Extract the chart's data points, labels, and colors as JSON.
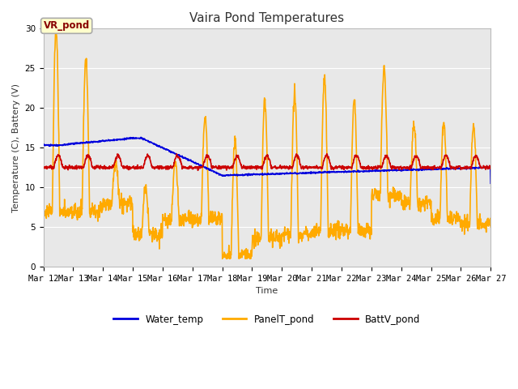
{
  "title": "Vaira Pond Temperatures",
  "ylabel": "Temperature (C), Battery (V)",
  "xlabel": "Time",
  "ylim": [
    0,
    30
  ],
  "background_color": "#ffffff",
  "plot_bg_color": "#e8e8e8",
  "annotation_text": "VR_pond",
  "annotation_bg": "#ffffcc",
  "annotation_border": "#aaaaaa",
  "x_tick_labels": [
    "Mar 12",
    "Mar 13",
    "Mar 14",
    "Mar 15",
    "Mar 16",
    "Mar 17",
    "Mar 18",
    "Mar 19",
    "Mar 20",
    "Mar 21",
    "Mar 22",
    "Mar 23",
    "Mar 24",
    "Mar 25",
    "Mar 26",
    "Mar 27"
  ],
  "water_temp_color": "#0000dd",
  "panel_temp_color": "#ffaa00",
  "batt_color": "#cc0000",
  "legend_labels": [
    "Water_temp",
    "PanelT_pond",
    "BattV_pond"
  ],
  "line_width": 1.2,
  "title_fontsize": 11,
  "label_fontsize": 8,
  "tick_fontsize": 7.5
}
